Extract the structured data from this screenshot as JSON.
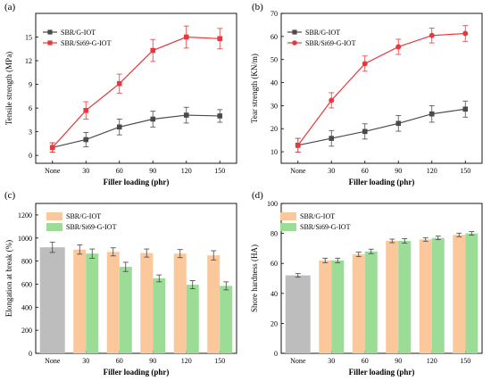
{
  "chart_data": [
    {
      "panel": "(a)",
      "type": "line",
      "categories": [
        "None",
        "30",
        "60",
        "90",
        "120",
        "150"
      ],
      "xlabel": "Filler loading (phr)",
      "ylabel": "Tensile strength (MPa)",
      "ylim": [
        -1,
        18
      ],
      "yticks": [
        0,
        3,
        6,
        9,
        12,
        15
      ],
      "legend": "top-left",
      "series": [
        {
          "name": "SBR/G-IOT",
          "color": "#4a4a4a",
          "marker": "square",
          "values": [
            1.0,
            2.0,
            3.6,
            4.6,
            5.1,
            5.0
          ],
          "errors": [
            0.6,
            0.9,
            1.0,
            1.0,
            1.0,
            0.8
          ]
        },
        {
          "name": "SBR/Si69-G-IOT",
          "color": "#e8383b",
          "marker": "square",
          "values": [
            1.0,
            5.7,
            9.1,
            13.3,
            15.0,
            14.8
          ],
          "errors": [
            0.6,
            1.1,
            1.2,
            1.4,
            1.4,
            1.3
          ]
        }
      ]
    },
    {
      "panel": "(b)",
      "type": "line",
      "categories": [
        "None",
        "30",
        "60",
        "90",
        "120",
        "150"
      ],
      "xlabel": "Filler loading (phr)",
      "ylabel": "Tear strength (KN/m)",
      "ylim": [
        5,
        70
      ],
      "yticks": [
        10,
        20,
        30,
        40,
        50,
        60,
        70
      ],
      "legend": "top-left",
      "series": [
        {
          "name": "SBR/G-IOT",
          "color": "#4a4a4a",
          "marker": "square",
          "values": [
            12.8,
            15.8,
            18.8,
            22.3,
            26.4,
            28.5
          ],
          "errors": [
            3.0,
            3.4,
            3.3,
            3.4,
            3.6,
            3.5
          ]
        },
        {
          "name": "SBR/Si69-G-IOT",
          "color": "#e8383b",
          "marker": "circle",
          "values": [
            12.8,
            32.3,
            48.2,
            55.5,
            60.4,
            61.3
          ],
          "errors": [
            3.0,
            3.3,
            3.3,
            3.3,
            3.2,
            3.4
          ]
        }
      ]
    },
    {
      "panel": "(c)",
      "type": "bar",
      "categories": [
        "None",
        "30",
        "60",
        "90",
        "120",
        "150"
      ],
      "xlabel": "Filler loading (phr)",
      "ylabel": "Elongation at break (%)",
      "ylim": [
        0,
        1300
      ],
      "yticks": [
        0,
        200,
        400,
        600,
        800,
        1000,
        1200
      ],
      "legend": "top-center",
      "baseline": {
        "category": "None",
        "value": 920,
        "error": 45,
        "color": "#bdbdbd"
      },
      "series": [
        {
          "name": "SBR/G-IOT",
          "color": "#fbc89c",
          "values": [
            null,
            900,
            880,
            870,
            865,
            850
          ],
          "errors": [
            null,
            40,
            35,
            35,
            35,
            40
          ]
        },
        {
          "name": "SBR/Si69-G-IOT",
          "color": "#9bdc97",
          "values": [
            null,
            865,
            750,
            650,
            595,
            585
          ],
          "errors": [
            null,
            40,
            40,
            30,
            35,
            35
          ]
        }
      ]
    },
    {
      "panel": "(d)",
      "type": "bar",
      "categories": [
        "None",
        "30",
        "60",
        "90",
        "120",
        "150"
      ],
      "xlabel": "Filler loading (phr)",
      "ylabel": "Shore hardness (HA)",
      "ylim": [
        0,
        100
      ],
      "yticks": [
        0,
        20,
        40,
        60,
        80,
        100
      ],
      "legend": "top-left",
      "baseline": {
        "category": "None",
        "value": 52,
        "error": 1.2,
        "color": "#bdbdbd"
      },
      "series": [
        {
          "name": "SBR/G-IOT",
          "color": "#fbc89c",
          "values": [
            null,
            62,
            66,
            75,
            76,
            79
          ],
          "errors": [
            null,
            1.5,
            1.5,
            1.2,
            1.2,
            1.2
          ]
        },
        {
          "name": "SBR/Si69-G-IOT",
          "color": "#9bdc97",
          "values": [
            null,
            62,
            68,
            75,
            77,
            80
          ],
          "errors": [
            null,
            1.5,
            1.5,
            1.5,
            1.2,
            1.2
          ]
        }
      ]
    }
  ]
}
